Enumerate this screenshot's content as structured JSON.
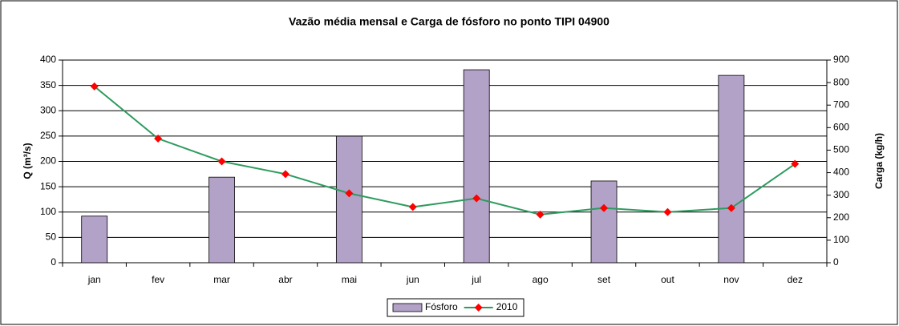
{
  "chart_data": {
    "type": "bar_line",
    "title": "Vazão média mensal e Carga de fósforo no ponto TIPI 04900",
    "categories": [
      "jan",
      "fev",
      "mar",
      "abr",
      "mai",
      "jun",
      "jul",
      "ago",
      "set",
      "out",
      "nov",
      "dez"
    ],
    "ylabel": "Q (m³/s)",
    "y2label": "Carga (kg/h)",
    "ylim": [
      0,
      400
    ],
    "yticks": [
      0,
      50,
      100,
      150,
      200,
      250,
      300,
      350,
      400
    ],
    "y2lim": [
      0,
      900
    ],
    "y2ticks": [
      0,
      100,
      200,
      300,
      400,
      500,
      600,
      700,
      800,
      900
    ],
    "grid": true,
    "legend": "bottom",
    "series": [
      {
        "name": "Fósforo",
        "kind": "bar",
        "axis": "y2",
        "color": "#b3a2c7",
        "values": [
          207,
          null,
          380,
          null,
          562,
          null,
          857,
          null,
          363,
          null,
          832,
          null
        ]
      },
      {
        "name": "2010",
        "kind": "line",
        "axis": "y",
        "color": "#2e9b5f",
        "marker_color": "#ff0000",
        "values": [
          348,
          245,
          200,
          175,
          137,
          110,
          127,
          95,
          108,
          100,
          108,
          195
        ]
      }
    ]
  }
}
